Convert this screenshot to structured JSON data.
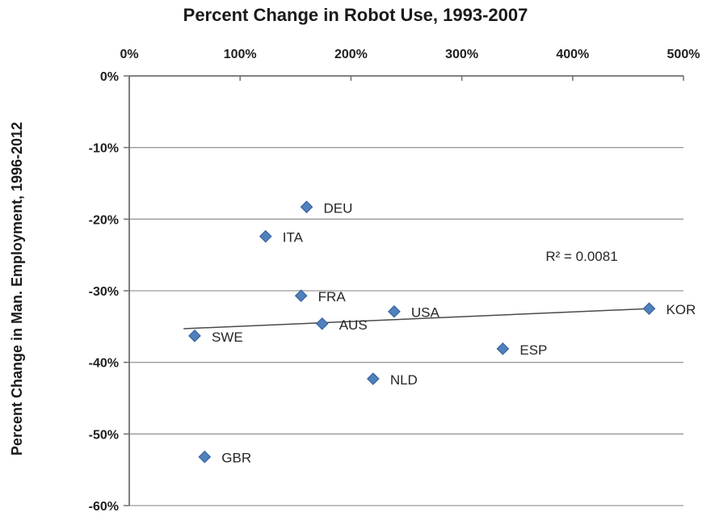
{
  "chart_data": {
    "type": "scatter",
    "title": "Percent Change in Robot Use, 1993-2007",
    "ylabel": "Percent Change in Man. Employment, 1996-2012",
    "xlabel": "Percent Change in Robot Use, 1993-2007",
    "xlim": [
      0,
      500
    ],
    "ylim": [
      -60,
      0
    ],
    "x_tick_values": [
      0,
      100,
      200,
      300,
      400,
      500
    ],
    "x_ticks": [
      "0%",
      "100%",
      "200%",
      "300%",
      "400%",
      "500%"
    ],
    "y_tick_values": [
      0,
      -10,
      -20,
      -30,
      -40,
      -50,
      -60
    ],
    "y_ticks": [
      "0%",
      "-10%",
      "-20%",
      "-30%",
      "-40%",
      "-50%",
      "-60%"
    ],
    "grid": "horizontal-only",
    "x_axis_position": "top",
    "points": [
      {
        "label": "SWE",
        "x": 59,
        "y": -36.3
      },
      {
        "label": "GBR",
        "x": 68,
        "y": -53.2
      },
      {
        "label": "ITA",
        "x": 123,
        "y": -22.4
      },
      {
        "label": "FRA",
        "x": 155,
        "y": -30.7
      },
      {
        "label": "DEU",
        "x": 160,
        "y": -18.3
      },
      {
        "label": "AUS",
        "x": 174,
        "y": -34.6
      },
      {
        "label": "NLD",
        "x": 220,
        "y": -42.3
      },
      {
        "label": "USA",
        "x": 239,
        "y": -32.9
      },
      {
        "label": "ESP",
        "x": 337,
        "y": -38.1
      },
      {
        "label": "KOR",
        "x": 469,
        "y": -32.5
      }
    ],
    "trendline": {
      "x1": 49,
      "y1": -35.3,
      "x2": 469,
      "y2": -32.5,
      "r_squared_label": "R² = 0.0081"
    },
    "colors": {
      "marker_fill": "#4f81bd",
      "marker_border": "#38639d",
      "trendline": "#4a4a4a",
      "axis": "#707070",
      "gridline": "#9a9a9a",
      "text": "#1a1a1a"
    }
  }
}
